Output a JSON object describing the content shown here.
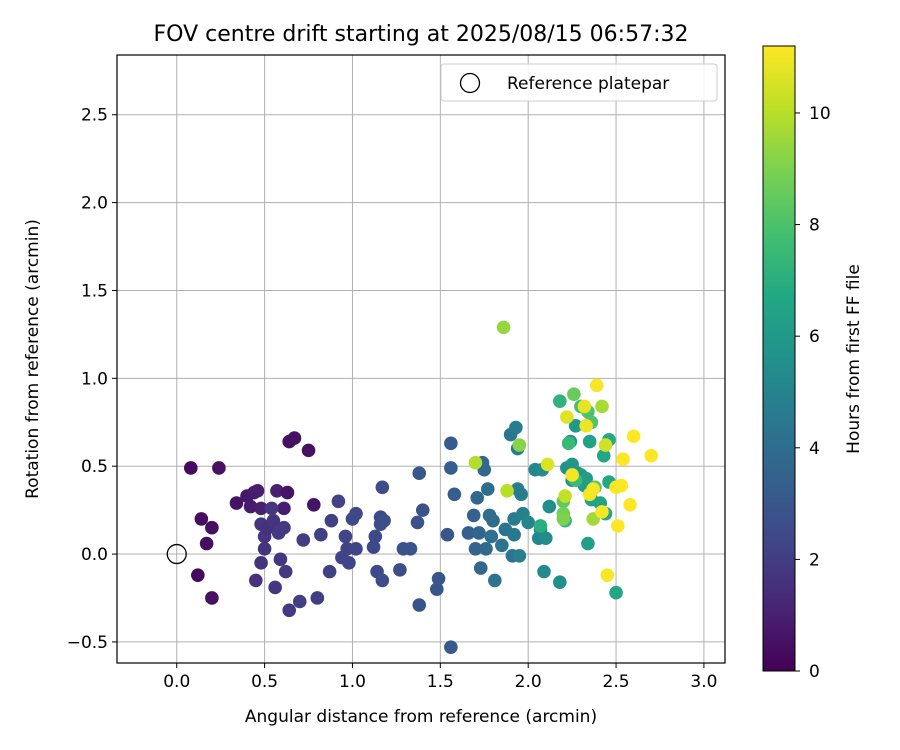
{
  "chart_data": {
    "type": "scatter",
    "title": "FOV centre drift starting at 2025/08/15 06:57:32",
    "xlabel": "Angular distance from reference (arcmin)",
    "ylabel": "Rotation from reference (arcmin)",
    "xlim": [
      -0.34,
      3.12
    ],
    "ylim": [
      -0.62,
      2.84
    ],
    "x_ticks": [
      0.0,
      0.5,
      1.0,
      1.5,
      2.0,
      2.5,
      3.0
    ],
    "y_ticks": [
      -0.5,
      0.0,
      0.5,
      1.0,
      1.5,
      2.0,
      2.5
    ],
    "x_tick_labels": [
      "0.0",
      "0.5",
      "1.0",
      "1.5",
      "2.0",
      "2.5",
      "3.0"
    ],
    "y_tick_labels": [
      "−0.5",
      "0.0",
      "0.5",
      "1.0",
      "1.5",
      "2.0",
      "2.5"
    ],
    "grid": true,
    "legend": {
      "position": "top-right",
      "entries": [
        "Reference platepar"
      ]
    },
    "colorbar": {
      "label": "Hours from first FF file",
      "range": [
        0,
        11.2
      ],
      "ticks": [
        0,
        2,
        4,
        6,
        8,
        10
      ],
      "tick_labels": [
        "0",
        "2",
        "4",
        "6",
        "8",
        "10"
      ],
      "colormap": "viridis"
    },
    "reference_point": {
      "x": 0.0,
      "y": 0.0,
      "label": "Reference platepar"
    },
    "points": [
      {
        "x": 0.08,
        "y": 0.49,
        "h": 0.3
      },
      {
        "x": 0.12,
        "y": -0.12,
        "h": 0.3
      },
      {
        "x": 0.14,
        "y": 0.2,
        "h": 0.4
      },
      {
        "x": 0.17,
        "y": 0.06,
        "h": 0.4
      },
      {
        "x": 0.2,
        "y": 0.15,
        "h": 0.4
      },
      {
        "x": 0.2,
        "y": -0.25,
        "h": 0.5
      },
      {
        "x": 0.24,
        "y": 0.49,
        "h": 0.5
      },
      {
        "x": 0.34,
        "y": 0.29,
        "h": 0.6
      },
      {
        "x": 0.4,
        "y": 0.33,
        "h": 0.7
      },
      {
        "x": 0.42,
        "y": 0.27,
        "h": 0.8
      },
      {
        "x": 0.44,
        "y": 0.35,
        "h": 0.8
      },
      {
        "x": 0.46,
        "y": 0.36,
        "h": 0.9
      },
      {
        "x": 0.48,
        "y": 0.26,
        "h": 1.0
      },
      {
        "x": 0.57,
        "y": 0.36,
        "h": 1.0
      },
      {
        "x": 0.61,
        "y": 0.26,
        "h": 0.9
      },
      {
        "x": 0.63,
        "y": 0.35,
        "h": 0.6
      },
      {
        "x": 0.64,
        "y": 0.64,
        "h": 0.5
      },
      {
        "x": 0.67,
        "y": 0.66,
        "h": 0.5
      },
      {
        "x": 0.75,
        "y": 0.59,
        "h": 0.5
      },
      {
        "x": 0.78,
        "y": 0.28,
        "h": 0.6
      },
      {
        "x": 0.45,
        "y": -0.15,
        "h": 1.6
      },
      {
        "x": 0.48,
        "y": -0.05,
        "h": 1.6
      },
      {
        "x": 0.48,
        "y": 0.17,
        "h": 1.7
      },
      {
        "x": 0.5,
        "y": 0.1,
        "h": 1.7
      },
      {
        "x": 0.5,
        "y": 0.03,
        "h": 1.7
      },
      {
        "x": 0.52,
        "y": 0.15,
        "h": 1.6
      },
      {
        "x": 0.54,
        "y": 0.26,
        "h": 1.8
      },
      {
        "x": 0.55,
        "y": 0.19,
        "h": 1.7
      },
      {
        "x": 0.56,
        "y": -0.19,
        "h": 1.8
      },
      {
        "x": 0.58,
        "y": 0.12,
        "h": 1.9
      },
      {
        "x": 0.59,
        "y": -0.03,
        "h": 1.8
      },
      {
        "x": 0.61,
        "y": 0.15,
        "h": 1.9
      },
      {
        "x": 0.62,
        "y": -0.1,
        "h": 1.9
      },
      {
        "x": 0.64,
        "y": -0.32,
        "h": 1.9
      },
      {
        "x": 0.7,
        "y": -0.27,
        "h": 2.0
      },
      {
        "x": 0.72,
        "y": 0.08,
        "h": 2.0
      },
      {
        "x": 0.8,
        "y": -0.25,
        "h": 2.0
      },
      {
        "x": 0.82,
        "y": 0.11,
        "h": 2.1
      },
      {
        "x": 0.87,
        "y": -0.1,
        "h": 2.1
      },
      {
        "x": 0.88,
        "y": 0.19,
        "h": 2.1
      },
      {
        "x": 0.92,
        "y": 0.3,
        "h": 2.2
      },
      {
        "x": 0.94,
        "y": -0.02,
        "h": 2.2
      },
      {
        "x": 0.96,
        "y": 0.1,
        "h": 2.3
      },
      {
        "x": 0.97,
        "y": 0.03,
        "h": 2.2
      },
      {
        "x": 0.98,
        "y": -0.05,
        "h": 2.3
      },
      {
        "x": 1.0,
        "y": 0.2,
        "h": 2.4
      },
      {
        "x": 1.02,
        "y": 0.23,
        "h": 2.4
      },
      {
        "x": 1.02,
        "y": 0.03,
        "h": 2.3
      },
      {
        "x": 1.12,
        "y": 0.04,
        "h": 2.4
      },
      {
        "x": 1.13,
        "y": 0.1,
        "h": 2.5
      },
      {
        "x": 1.14,
        "y": -0.1,
        "h": 2.5
      },
      {
        "x": 1.16,
        "y": 0.21,
        "h": 2.5
      },
      {
        "x": 1.16,
        "y": 0.17,
        "h": 2.6
      },
      {
        "x": 1.17,
        "y": -0.15,
        "h": 2.6
      },
      {
        "x": 1.17,
        "y": 0.38,
        "h": 2.6
      },
      {
        "x": 1.18,
        "y": 0.19,
        "h": 2.7
      },
      {
        "x": 1.27,
        "y": -0.09,
        "h": 2.7
      },
      {
        "x": 1.29,
        "y": 0.03,
        "h": 2.8
      },
      {
        "x": 1.33,
        "y": 0.03,
        "h": 2.8
      },
      {
        "x": 1.37,
        "y": 0.18,
        "h": 2.8
      },
      {
        "x": 1.38,
        "y": 0.46,
        "h": 3.0
      },
      {
        "x": 1.38,
        "y": -0.29,
        "h": 2.9
      },
      {
        "x": 1.4,
        "y": 0.25,
        "h": 2.9
      },
      {
        "x": 1.48,
        "y": -0.2,
        "h": 3.0
      },
      {
        "x": 1.49,
        "y": -0.14,
        "h": 3.0
      },
      {
        "x": 1.54,
        "y": 0.11,
        "h": 3.0
      },
      {
        "x": 1.56,
        "y": -0.53,
        "h": 3.1
      },
      {
        "x": 1.56,
        "y": 0.63,
        "h": 3.2
      },
      {
        "x": 1.56,
        "y": 0.49,
        "h": 3.3
      },
      {
        "x": 1.58,
        "y": 0.34,
        "h": 3.3
      },
      {
        "x": 1.66,
        "y": 0.12,
        "h": 3.4
      },
      {
        "x": 1.69,
        "y": 0.22,
        "h": 3.5
      },
      {
        "x": 1.7,
        "y": 0.03,
        "h": 3.6
      },
      {
        "x": 1.71,
        "y": 0.32,
        "h": 3.7
      },
      {
        "x": 1.72,
        "y": 0.12,
        "h": 3.6
      },
      {
        "x": 1.73,
        "y": -0.08,
        "h": 3.7
      },
      {
        "x": 1.74,
        "y": 0.52,
        "h": 3.8
      },
      {
        "x": 1.75,
        "y": 0.48,
        "h": 3.8
      },
      {
        "x": 1.76,
        "y": 0.03,
        "h": 3.9
      },
      {
        "x": 1.77,
        "y": 0.37,
        "h": 4.0
      },
      {
        "x": 1.78,
        "y": 0.22,
        "h": 4.0
      },
      {
        "x": 1.79,
        "y": 0.1,
        "h": 4.1
      },
      {
        "x": 1.8,
        "y": 0.19,
        "h": 4.0
      },
      {
        "x": 1.81,
        "y": -0.15,
        "h": 4.2
      },
      {
        "x": 1.85,
        "y": 0.05,
        "h": 4.3
      },
      {
        "x": 1.87,
        "y": 0.14,
        "h": 4.3
      },
      {
        "x": 1.9,
        "y": 0.68,
        "h": 4.4
      },
      {
        "x": 1.91,
        "y": -0.01,
        "h": 4.4
      },
      {
        "x": 1.92,
        "y": 0.11,
        "h": 4.5
      },
      {
        "x": 1.92,
        "y": 0.2,
        "h": 4.6
      },
      {
        "x": 1.93,
        "y": 0.72,
        "h": 4.6
      },
      {
        "x": 1.94,
        "y": 0.6,
        "h": 4.7
      },
      {
        "x": 1.94,
        "y": 0.37,
        "h": 4.7
      },
      {
        "x": 1.95,
        "y": -0.01,
        "h": 4.8
      },
      {
        "x": 1.96,
        "y": 0.34,
        "h": 4.8
      },
      {
        "x": 1.97,
        "y": 0.23,
        "h": 4.9
      },
      {
        "x": 2.0,
        "y": 0.18,
        "h": 5.0
      },
      {
        "x": 2.04,
        "y": 0.48,
        "h": 5.1
      },
      {
        "x": 2.06,
        "y": 0.09,
        "h": 5.1
      },
      {
        "x": 2.07,
        "y": 0.14,
        "h": 5.2
      },
      {
        "x": 2.08,
        "y": 0.48,
        "h": 5.3
      },
      {
        "x": 2.09,
        "y": -0.1,
        "h": 5.3
      },
      {
        "x": 2.1,
        "y": 0.09,
        "h": 5.4
      },
      {
        "x": 2.12,
        "y": 0.27,
        "h": 5.4
      },
      {
        "x": 2.18,
        "y": -0.16,
        "h": 5.5
      },
      {
        "x": 2.22,
        "y": 0.49,
        "h": 5.6
      },
      {
        "x": 2.24,
        "y": 0.64,
        "h": 5.8
      },
      {
        "x": 2.25,
        "y": 0.42,
        "h": 5.8
      },
      {
        "x": 2.25,
        "y": 0.51,
        "h": 5.9
      },
      {
        "x": 2.27,
        "y": 0.73,
        "h": 6.0
      },
      {
        "x": 2.28,
        "y": 0.46,
        "h": 6.0
      },
      {
        "x": 2.3,
        "y": 0.45,
        "h": 6.1
      },
      {
        "x": 2.32,
        "y": 0.39,
        "h": 6.2
      },
      {
        "x": 2.33,
        "y": 0.43,
        "h": 6.2
      },
      {
        "x": 2.34,
        "y": 0.06,
        "h": 6.3
      },
      {
        "x": 2.35,
        "y": 0.64,
        "h": 6.4
      },
      {
        "x": 2.36,
        "y": 0.31,
        "h": 6.4
      },
      {
        "x": 2.41,
        "y": 0.29,
        "h": 6.5
      },
      {
        "x": 2.43,
        "y": 0.56,
        "h": 6.6
      },
      {
        "x": 2.44,
        "y": 0.23,
        "h": 6.6
      },
      {
        "x": 2.46,
        "y": 0.41,
        "h": 6.7
      },
      {
        "x": 2.46,
        "y": 0.65,
        "h": 6.8
      },
      {
        "x": 2.5,
        "y": -0.22,
        "h": 6.6
      },
      {
        "x": 2.07,
        "y": 0.16,
        "h": 7.0
      },
      {
        "x": 2.18,
        "y": 0.87,
        "h": 7.2
      },
      {
        "x": 2.21,
        "y": 0.19,
        "h": 7.3
      },
      {
        "x": 2.23,
        "y": 0.63,
        "h": 7.5
      },
      {
        "x": 2.27,
        "y": 0.42,
        "h": 7.6
      },
      {
        "x": 2.3,
        "y": 0.84,
        "h": 7.8
      },
      {
        "x": 2.34,
        "y": 0.81,
        "h": 8.0
      },
      {
        "x": 2.36,
        "y": 0.75,
        "h": 8.1
      },
      {
        "x": 2.38,
        "y": 0.38,
        "h": 8.2
      },
      {
        "x": 2.2,
        "y": 0.3,
        "h": 8.4
      },
      {
        "x": 2.26,
        "y": 0.91,
        "h": 8.6
      },
      {
        "x": 2.2,
        "y": 0.23,
        "h": 8.8
      },
      {
        "x": 2.2,
        "y": 0.2,
        "h": 9.0
      },
      {
        "x": 1.95,
        "y": 0.62,
        "h": 9.2
      },
      {
        "x": 1.86,
        "y": 1.29,
        "h": 9.4
      },
      {
        "x": 2.37,
        "y": 0.2,
        "h": 9.6
      },
      {
        "x": 2.42,
        "y": 0.84,
        "h": 9.7
      },
      {
        "x": 1.7,
        "y": 0.52,
        "h": 9.9
      },
      {
        "x": 1.88,
        "y": 0.36,
        "h": 10.0
      },
      {
        "x": 2.21,
        "y": 0.33,
        "h": 10.2
      },
      {
        "x": 2.44,
        "y": 0.62,
        "h": 10.4
      },
      {
        "x": 2.11,
        "y": 0.51,
        "h": 10.6
      },
      {
        "x": 2.22,
        "y": 0.78,
        "h": 10.7
      },
      {
        "x": 2.32,
        "y": 0.84,
        "h": 10.8
      },
      {
        "x": 2.33,
        "y": 0.73,
        "h": 10.9
      },
      {
        "x": 2.25,
        "y": 0.45,
        "h": 11.0
      },
      {
        "x": 2.35,
        "y": 0.34,
        "h": 11.0
      },
      {
        "x": 2.37,
        "y": 0.37,
        "h": 11.1
      },
      {
        "x": 2.39,
        "y": 0.96,
        "h": 11.1
      },
      {
        "x": 2.42,
        "y": 0.24,
        "h": 11.1
      },
      {
        "x": 2.45,
        "y": -0.12,
        "h": 11.1
      },
      {
        "x": 2.5,
        "y": 0.38,
        "h": 11.2
      },
      {
        "x": 2.51,
        "y": 0.16,
        "h": 11.2
      },
      {
        "x": 2.53,
        "y": 0.39,
        "h": 11.2
      },
      {
        "x": 2.54,
        "y": 0.54,
        "h": 11.2
      },
      {
        "x": 2.58,
        "y": 0.28,
        "h": 11.2
      },
      {
        "x": 2.6,
        "y": 0.67,
        "h": 11.2
      },
      {
        "x": 2.7,
        "y": 0.56,
        "h": 11.2
      }
    ]
  }
}
